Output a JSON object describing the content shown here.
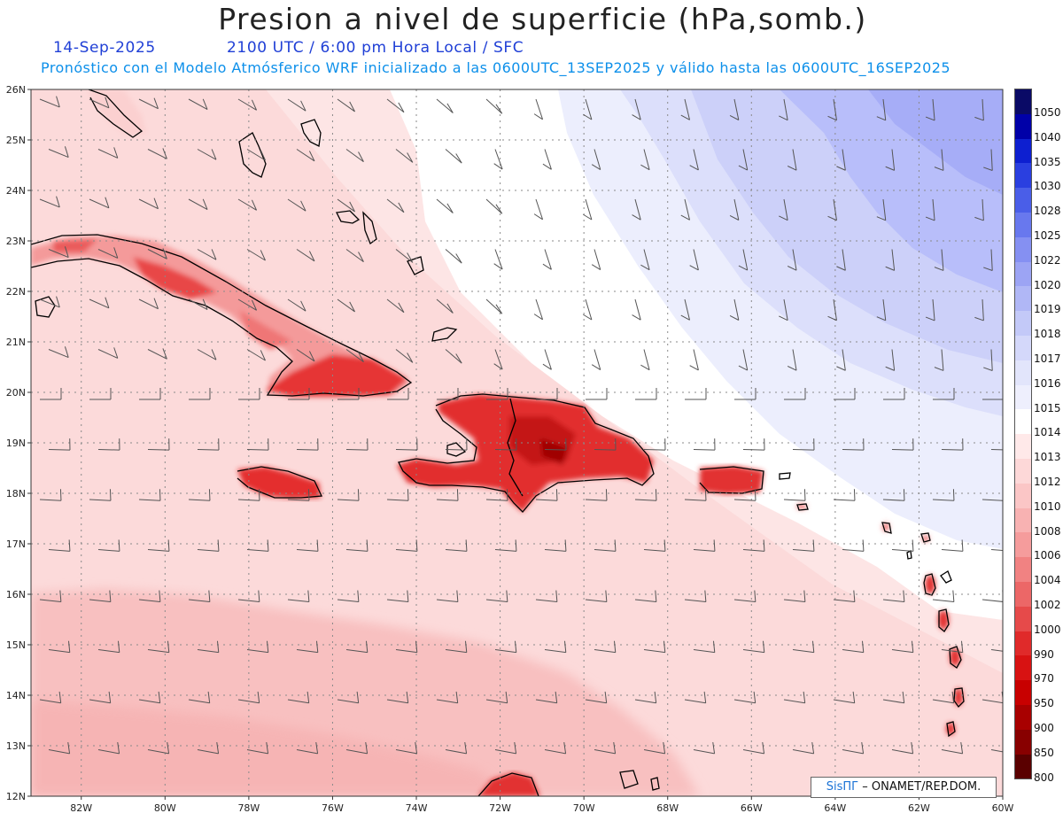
{
  "header": {
    "title": "Presion a nivel de superficie (hPa,somb.)",
    "date": "14-Sep-2025",
    "time_info": "2100 UTC / 6:00 pm Hora Local / SFC",
    "forecast_info": "Pronóstico con el Modelo Atmósferico WRF inicializado a las 0600UTC_13SEP2025 y válido hasta las  0600UTC_16SEP2025"
  },
  "map": {
    "lat_labels": [
      "26N",
      "25N",
      "24N",
      "23N",
      "22N",
      "21N",
      "20N",
      "19N",
      "18N",
      "17N",
      "16N",
      "15N",
      "14N",
      "13N",
      "12N"
    ],
    "lon_labels": [
      "82W",
      "80W",
      "78W",
      "76W",
      "74W",
      "72W",
      "70W",
      "68W",
      "66W",
      "64W",
      "62W",
      "60W"
    ],
    "lon_range": [
      -83.2,
      -60.0
    ],
    "lat_range": [
      12.0,
      26.0
    ],
    "gridlines": true
  },
  "colorbar": {
    "labels": [
      "1050",
      "1040",
      "1035",
      "1030",
      "1028",
      "1025",
      "1022",
      "1020",
      "1019",
      "1018",
      "1017",
      "1016",
      "1015",
      "1014",
      "1013",
      "1012",
      "1010",
      "1008",
      "1006",
      "1004",
      "1002",
      "1000",
      "990",
      "970",
      "950",
      "900",
      "850",
      "800"
    ],
    "colors": [
      "#0a0a66",
      "#0000a8",
      "#0d1fd0",
      "#2a3fe0",
      "#4a5ee8",
      "#6878ee",
      "#8590f2",
      "#9ca4f4",
      "#b0b7f6",
      "#c3c9f8",
      "#d4d8fa",
      "#e2e5fb",
      "#eeeffd",
      "#ffffff",
      "#ffe9e9",
      "#fdd8d8",
      "#fbc6c6",
      "#f8b2b2",
      "#f59c9c",
      "#f18282",
      "#ec6767",
      "#e64a4a",
      "#e02a2a",
      "#d81212",
      "#c80000",
      "#a80000",
      "#880000",
      "#5a0000"
    ]
  },
  "credit": {
    "logo": "SisПГ",
    "text": " – ONAMET/REP.DOM."
  }
}
